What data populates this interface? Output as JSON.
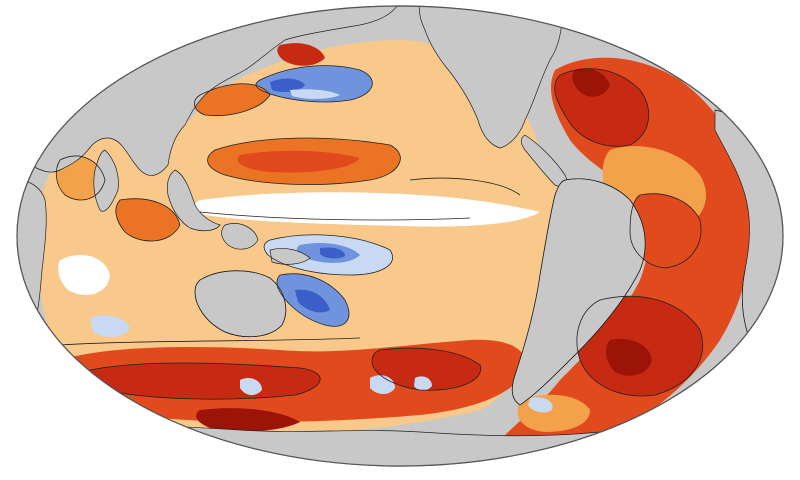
{
  "map": {
    "projection": "mollweide",
    "center": "pacific",
    "colormap": {
      "deep_blue": "#3a5fc8",
      "blue": "#6f93dc",
      "light_blue": "#c9d9f2",
      "white": "#ffffff",
      "pale": "#fde8c8",
      "light_orange": "#f8c98b",
      "orange": "#f3a14a",
      "dark_orange": "#ea7424",
      "red": "#e04a1c",
      "dark_red": "#c72a12",
      "deepest": "#9c1408"
    },
    "land_color": "#c8c8c8",
    "contour_color": "#222222"
  }
}
